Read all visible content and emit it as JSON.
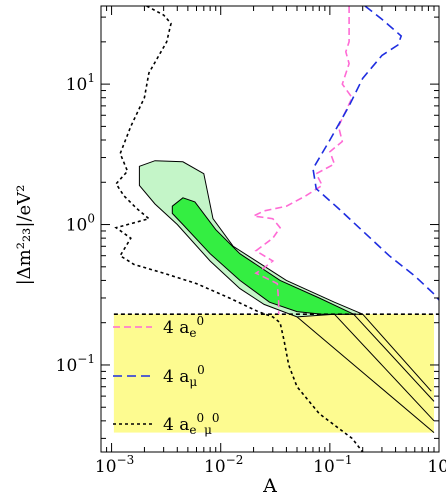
{
  "chart_data": {
    "type": "line",
    "title": "",
    "xlabel": "A",
    "ylabel": "|Δm²₂₃|/eV²",
    "xscale": "log",
    "yscale": "log",
    "xlim": [
      0.0008,
      1.0
    ],
    "ylim": [
      0.024,
      36
    ],
    "grid": false,
    "legend_position": "inside-bottom-left",
    "x_ticks": [
      {
        "value": 0.001,
        "base": "10",
        "exp": "−3"
      },
      {
        "value": 0.01,
        "base": "10",
        "exp": "−2"
      },
      {
        "value": 0.1,
        "base": "10",
        "exp": "−1"
      },
      {
        "value": 1,
        "base": "10",
        "exp": "0"
      }
    ],
    "y_ticks": [
      {
        "value": 0.1,
        "base": "10",
        "exp": "−1"
      },
      {
        "value": 1,
        "base": "10",
        "exp": "0"
      },
      {
        "value": 10,
        "base": "10",
        "exp": "1"
      }
    ],
    "excluded_region": {
      "color": "#fdfb90",
      "x_range": [
        0.00105,
        0.9
      ],
      "y_range": [
        0.033,
        0.23
      ],
      "boundary_y": 0.23
    },
    "regions": [
      {
        "name": "outer",
        "fill": "#c4f5c8",
        "points": [
          [
            0.0018,
            2.6
          ],
          [
            0.0025,
            2.85
          ],
          [
            0.0045,
            2.8
          ],
          [
            0.007,
            2.3
          ],
          [
            0.0085,
            1.1
          ],
          [
            0.013,
            0.7
          ],
          [
            0.04,
            0.4
          ],
          [
            0.11,
            0.28
          ],
          [
            0.2,
            0.23
          ],
          [
            0.11,
            0.23
          ],
          [
            0.05,
            0.22
          ],
          [
            0.025,
            0.27
          ],
          [
            0.015,
            0.35
          ],
          [
            0.008,
            0.55
          ],
          [
            0.004,
            1.0
          ],
          [
            0.0025,
            1.4
          ],
          [
            0.0018,
            1.9
          ]
        ]
      },
      {
        "name": "inner",
        "fill": "#34ee42",
        "points": [
          [
            0.0036,
            1.35
          ],
          [
            0.0045,
            1.55
          ],
          [
            0.0058,
            1.45
          ],
          [
            0.009,
            0.92
          ],
          [
            0.015,
            0.62
          ],
          [
            0.035,
            0.4
          ],
          [
            0.08,
            0.3
          ],
          [
            0.165,
            0.23
          ],
          [
            0.085,
            0.23
          ],
          [
            0.05,
            0.24
          ],
          [
            0.028,
            0.28
          ],
          [
            0.015,
            0.4
          ],
          [
            0.008,
            0.62
          ],
          [
            0.0045,
            1.0
          ],
          [
            0.0036,
            1.2
          ]
        ]
      }
    ],
    "contour_tails": [
      [
        [
          0.2,
          0.23
        ],
        [
          0.85,
          0.065
        ]
      ],
      [
        [
          0.165,
          0.23
        ],
        [
          0.9,
          0.055
        ]
      ],
      [
        [
          0.11,
          0.23
        ],
        [
          0.9,
          0.04
        ]
      ],
      [
        [
          0.05,
          0.22
        ],
        [
          0.9,
          0.033
        ]
      ]
    ],
    "series": [
      {
        "name": "4 a",
        "name_sub": "e",
        "name_sup": "0",
        "color": "#ff6bd5",
        "dash": "7,4",
        "points": [
          [
            0.15,
            36
          ],
          [
            0.15,
            20
          ],
          [
            0.14,
            17
          ],
          [
            0.15,
            14
          ],
          [
            0.13,
            10
          ],
          [
            0.16,
            8
          ],
          [
            0.12,
            5
          ],
          [
            0.13,
            3.9
          ],
          [
            0.1,
            3.3
          ],
          [
            0.11,
            2.7
          ],
          [
            0.075,
            2.3
          ],
          [
            0.085,
            1.9
          ],
          [
            0.06,
            1.6
          ],
          [
            0.04,
            1.35
          ],
          [
            0.025,
            1.25
          ],
          [
            0.02,
            1.15
          ],
          [
            0.03,
            1.1
          ],
          [
            0.035,
            0.95
          ],
          [
            0.03,
            0.8
          ],
          [
            0.021,
            0.65
          ],
          [
            0.03,
            0.55
          ],
          [
            0.024,
            0.48
          ],
          [
            0.021,
            0.45
          ],
          [
            0.033,
            0.38
          ],
          [
            0.034,
            0.28
          ],
          [
            0.034,
            0.23
          ]
        ]
      },
      {
        "name": "4 a",
        "name_sub": "μ",
        "name_sup": "0",
        "color": "#1f2ee0",
        "dash": "9,5",
        "points": [
          [
            0.21,
            36
          ],
          [
            0.3,
            29
          ],
          [
            0.45,
            22
          ],
          [
            0.42,
            19
          ],
          [
            0.3,
            16
          ],
          [
            0.2,
            11
          ],
          [
            0.15,
            7
          ],
          [
            0.1,
            4
          ],
          [
            0.07,
            2.5
          ],
          [
            0.075,
            1.8
          ],
          [
            0.12,
            1.3
          ],
          [
            0.2,
            0.9
          ],
          [
            0.35,
            0.6
          ],
          [
            0.6,
            0.43
          ],
          [
            0.9,
            0.32
          ],
          [
            1.0,
            0.29
          ]
        ]
      },
      {
        "name": "4 a",
        "name_sub": "e",
        "name_sup": "0",
        "name2_sub": "μ",
        "name2_sup": "0",
        "color": "#000000",
        "dash": "3,3",
        "points": [
          [
            0.0021,
            36
          ],
          [
            0.003,
            31
          ],
          [
            0.0035,
            27
          ],
          [
            0.0032,
            20
          ],
          [
            0.0022,
            12
          ],
          [
            0.002,
            8
          ],
          [
            0.0015,
            5
          ],
          [
            0.0012,
            3.2
          ],
          [
            0.0014,
            2.4
          ],
          [
            0.0011,
            1.95
          ],
          [
            0.0013,
            1.6
          ],
          [
            0.0017,
            1.3
          ],
          [
            0.0022,
            1.1
          ],
          [
            0.0011,
            0.95
          ],
          [
            0.0015,
            0.8
          ],
          [
            0.0012,
            0.6
          ],
          [
            0.0016,
            0.52
          ],
          [
            0.003,
            0.45
          ],
          [
            0.006,
            0.38
          ],
          [
            0.012,
            0.3
          ],
          [
            0.022,
            0.24
          ],
          [
            0.03,
            0.22
          ],
          [
            0.035,
            0.2
          ],
          [
            0.038,
            0.15
          ],
          [
            0.042,
            0.1
          ],
          [
            0.05,
            0.07
          ],
          [
            0.08,
            0.045
          ],
          [
            0.16,
            0.03
          ],
          [
            0.2,
            0.024
          ]
        ]
      }
    ]
  }
}
